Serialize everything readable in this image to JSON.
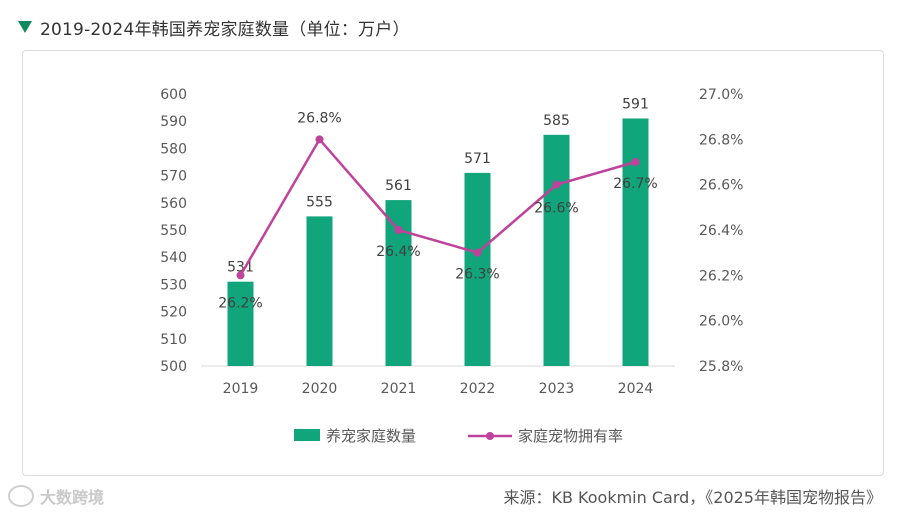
{
  "title": "2019-2024年韩国养宠家庭数量（单位：万户）",
  "source": "来源：KB Kookmin Card，《2025年韩国宠物报告》",
  "watermark": "大数跨境",
  "colors": {
    "bar": "#10a57a",
    "line": "#c0439b",
    "marker": "#0f8a5f"
  },
  "chart_data": {
    "type": "bar",
    "categories": [
      "2019",
      "2020",
      "2021",
      "2022",
      "2023",
      "2024"
    ],
    "series": [
      {
        "name": "养宠家庭数量",
        "type": "bar",
        "axis": "left",
        "values": [
          531,
          555,
          561,
          571,
          585,
          591
        ],
        "labels": [
          "531",
          "555",
          "561",
          "571",
          "585",
          "591"
        ]
      },
      {
        "name": "家庭宠物拥有率",
        "type": "line",
        "axis": "right",
        "values": [
          26.2,
          26.8,
          26.4,
          26.3,
          26.6,
          26.7
        ],
        "labels": [
          "26.2%",
          "26.8%",
          "26.4%",
          "26.3%",
          "26.6%",
          "26.7%"
        ]
      }
    ],
    "y_left": {
      "min": 500,
      "max": 600,
      "ticks": [
        "600",
        "590",
        "580",
        "570",
        "560",
        "550",
        "540",
        "530",
        "520",
        "510",
        "500"
      ],
      "tick_values": [
        600,
        590,
        580,
        570,
        560,
        550,
        540,
        530,
        520,
        510,
        500
      ]
    },
    "y_right": {
      "min": 25.8,
      "max": 27.0,
      "ticks": [
        "27.0%",
        "26.8%",
        "26.6%",
        "26.4%",
        "26.2%",
        "26.0%",
        "25.8%"
      ],
      "tick_values": [
        27.0,
        26.8,
        26.6,
        26.4,
        26.2,
        26.0,
        25.8
      ]
    },
    "legend": [
      "养宠家庭数量",
      "家庭宠物拥有率"
    ],
    "legend_position": "bottom",
    "grid": false
  }
}
